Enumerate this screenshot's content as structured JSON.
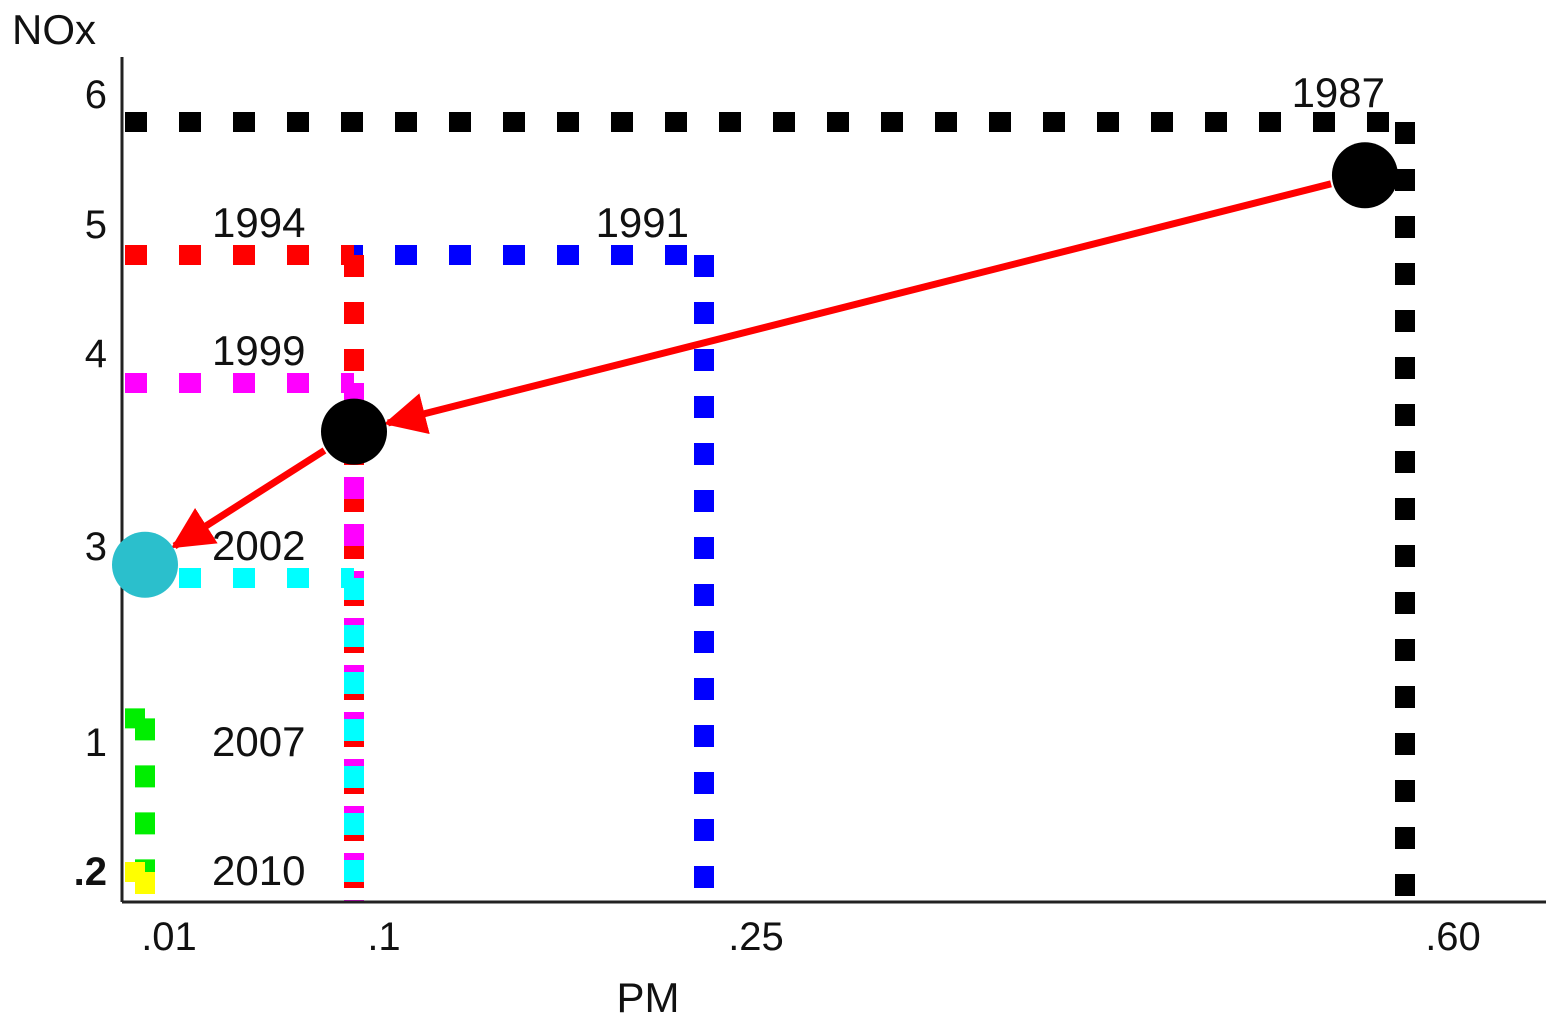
{
  "chart_data": {
    "type": "line",
    "title": "",
    "xlabel": "PM",
    "ylabel": "NOx",
    "x_ticks": [
      ".01",
      ".1",
      ".25",
      ".60"
    ],
    "y_ticks": [
      ".2",
      "1",
      "3",
      "4",
      "5",
      "6"
    ],
    "grid": false,
    "standards": [
      {
        "year": "1987",
        "pm": 0.6,
        "nox": 6.0,
        "color": "#000000"
      },
      {
        "year": "1991",
        "pm": 0.25,
        "nox": 5.0,
        "color": "#0000ff"
      },
      {
        "year": "1994",
        "pm": 0.1,
        "nox": 5.0,
        "color": "#ff0000"
      },
      {
        "year": "1999",
        "pm": 0.1,
        "nox": 4.0,
        "color": "#ff00ff"
      },
      {
        "year": "2002",
        "pm": 0.1,
        "nox": 2.5,
        "color": "#00ffff"
      },
      {
        "year": "2007",
        "pm": 0.01,
        "nox": 1.2,
        "color": "#00ee00"
      },
      {
        "year": "2010",
        "pm": 0.01,
        "nox": 0.2,
        "color": "#ffff00"
      }
    ],
    "markers": [
      {
        "pm": 0.58,
        "nox": 5.6,
        "color": "#000000"
      },
      {
        "pm": 0.1,
        "nox": 3.7,
        "color": "#000000"
      },
      {
        "pm": 0.01,
        "nox": 2.7,
        "color": "#2bbfcc"
      }
    ],
    "arrows": [
      {
        "from_marker": 0,
        "to_marker": 1,
        "color": "#ff0000"
      },
      {
        "from_marker": 1,
        "to_marker": 2,
        "color": "#ff0000"
      }
    ]
  }
}
